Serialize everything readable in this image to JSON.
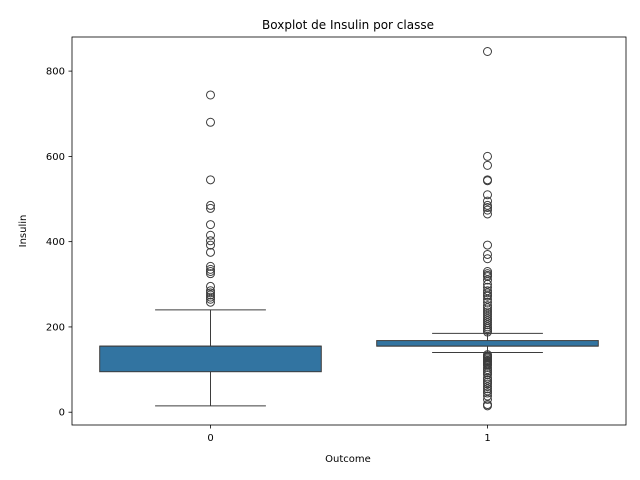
{
  "chart_data": {
    "type": "box",
    "title": "Boxplot de Insulin por classe",
    "xlabel": "Outcome",
    "ylabel": "Insulin",
    "categories": [
      "0",
      "1"
    ],
    "yticks": [
      0,
      200,
      400,
      600,
      800
    ],
    "ylim": [
      -30,
      880
    ],
    "grid": false,
    "box_color": "#3274a1",
    "boxes": [
      {
        "category": "0",
        "whisker_low": 15,
        "q1": 95,
        "median": 155,
        "q3": 155,
        "whisker_high": 240,
        "outliers": [
          744,
          680,
          545,
          485,
          478,
          440,
          415,
          402,
          392,
          375,
          342,
          335,
          330,
          325,
          295,
          285,
          280,
          275,
          270,
          265,
          258
        ]
      },
      {
        "category": "1",
        "whisker_low": 140,
        "q1": 155,
        "median": 155,
        "q3": 168,
        "whisker_high": 185,
        "outliers": [
          846,
          600,
          579,
          545,
          543,
          510,
          495,
          485,
          480,
          474,
          465,
          392,
          370,
          360,
          330,
          325,
          321,
          318,
          310,
          300,
          293,
          285,
          280,
          275,
          272,
          265,
          258,
          250,
          245,
          240,
          235,
          230,
          225,
          220,
          215,
          210,
          205,
          200,
          196,
          192,
          188,
          135,
          132,
          130,
          128,
          125,
          122,
          120,
          118,
          115,
          112,
          110,
          105,
          100,
          96,
          92,
          88,
          80,
          75,
          70,
          66,
          60,
          55,
          50,
          45,
          38,
          30,
          18,
          15
        ]
      }
    ]
  }
}
